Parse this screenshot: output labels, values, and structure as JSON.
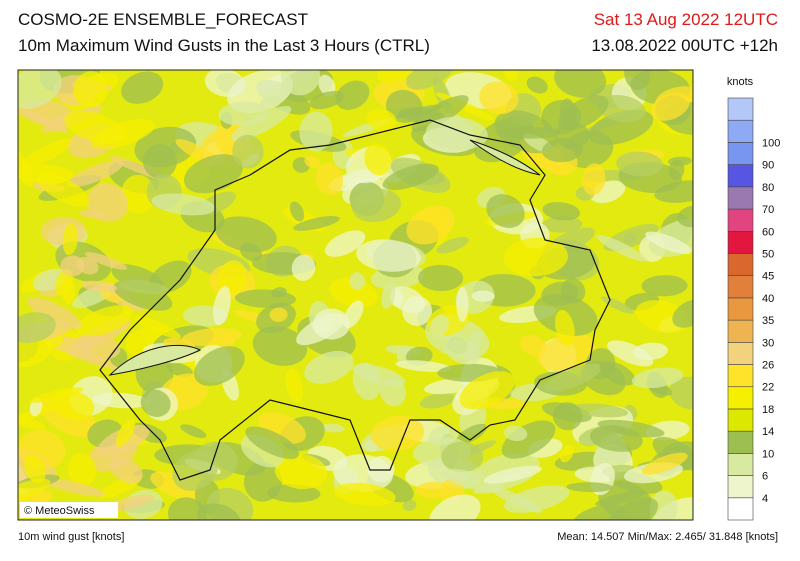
{
  "header": {
    "title": "COSMO-2E ENSEMBLE_FORECAST",
    "subtitle": "10m Maximum Wind Gusts in the Last 3 Hours (CTRL)",
    "valid_time": "Sat 13 Aug 2022 12UTC",
    "run": "13.08.2022 00UTC +12h"
  },
  "map": {
    "copyright": "© MeteoSwiss"
  },
  "legend": {
    "unit": "knots",
    "ticks": [
      4,
      6,
      10,
      14,
      18,
      22,
      26,
      30,
      35,
      40,
      45,
      50,
      60,
      70,
      80,
      90,
      100
    ],
    "colors": [
      "#ffffff",
      "#eef5cc",
      "#d8e9a0",
      "#9dbf52",
      "#dde800",
      "#f5ef00",
      "#ffe22a",
      "#f3d27e",
      "#efb452",
      "#e9983f",
      "#e0803a",
      "#d9672e",
      "#e3163f",
      "#e2447f",
      "#9a79b0",
      "#5656e2",
      "#7896f0",
      "#8eaaf4",
      "#b3c8f8"
    ]
  },
  "footer": {
    "left": "10m wind gust [knots]",
    "right": "Mean: 14.507 Min/Max:  2.465/ 31.848 [knots]"
  }
}
